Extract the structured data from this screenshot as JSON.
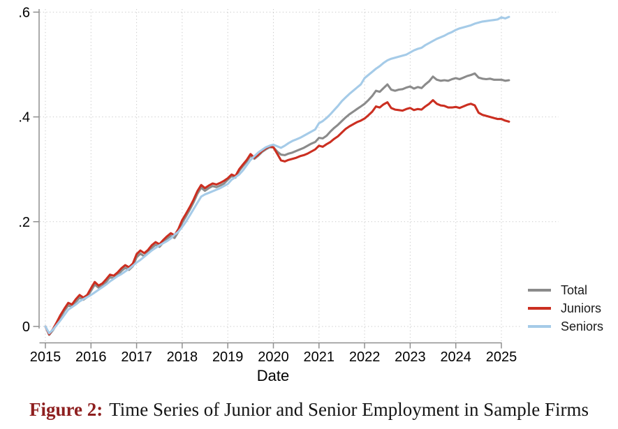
{
  "figure": {
    "caption_label": "Figure 2:",
    "caption_text": "Time Series of Junior and Senior Employment in Sample Firms",
    "caption_label_color": "#8e1f1f",
    "background_color": "#ffffff"
  },
  "chart_data": {
    "type": "line",
    "title": "",
    "xlabel": "Date",
    "ylabel": "",
    "grid": "dotted horizontal and vertical gridlines",
    "legend_position": "right",
    "axis_color": "#8f8f8f",
    "x_ticks": [
      2015,
      2016,
      2017,
      2018,
      2019,
      2020,
      2021,
      2022,
      2023,
      2024,
      2025
    ],
    "x_tick_labels": [
      "2015",
      "2016",
      "2017",
      "2018",
      "2019",
      "2020",
      "2021",
      "2022",
      "2023",
      "2024",
      "2025"
    ],
    "y_ticks": [
      0,
      0.2,
      0.4,
      0.6
    ],
    "y_tick_labels": [
      "0",
      ".2",
      ".4",
      ".6"
    ],
    "xlim": [
      2014.85,
      2026.2
    ],
    "ylim": [
      -0.02,
      0.61
    ],
    "x_frequency": "monthly",
    "x": [
      2015.0,
      2015.083,
      2015.167,
      2015.25,
      2015.333,
      2015.417,
      2015.5,
      2015.583,
      2015.667,
      2015.75,
      2015.833,
      2015.917,
      2016.0,
      2016.083,
      2016.167,
      2016.25,
      2016.333,
      2016.417,
      2016.5,
      2016.583,
      2016.667,
      2016.75,
      2016.833,
      2016.917,
      2017.0,
      2017.083,
      2017.167,
      2017.25,
      2017.333,
      2017.417,
      2017.5,
      2017.583,
      2017.667,
      2017.75,
      2017.833,
      2017.917,
      2018.0,
      2018.083,
      2018.167,
      2018.25,
      2018.333,
      2018.417,
      2018.5,
      2018.583,
      2018.667,
      2018.75,
      2018.833,
      2018.917,
      2019.0,
      2019.083,
      2019.167,
      2019.25,
      2019.333,
      2019.417,
      2019.5,
      2019.583,
      2019.667,
      2019.75,
      2019.833,
      2019.917,
      2020.0,
      2020.083,
      2020.167,
      2020.25,
      2020.333,
      2020.417,
      2020.5,
      2020.583,
      2020.667,
      2020.75,
      2020.833,
      2020.917,
      2021.0,
      2021.083,
      2021.167,
      2021.25,
      2021.333,
      2021.417,
      2021.5,
      2021.583,
      2021.667,
      2021.75,
      2021.833,
      2021.917,
      2022.0,
      2022.083,
      2022.167,
      2022.25,
      2022.333,
      2022.417,
      2022.5,
      2022.583,
      2022.667,
      2022.75,
      2022.833,
      2022.917,
      2023.0,
      2023.083,
      2023.167,
      2023.25,
      2023.333,
      2023.417,
      2023.5,
      2023.583,
      2023.667,
      2023.75,
      2023.833,
      2023.917,
      2024.0,
      2024.083,
      2024.167,
      2024.25,
      2024.333,
      2024.417,
      2024.5,
      2024.583,
      2024.667,
      2024.75,
      2024.833,
      2024.917,
      2025.0,
      2025.083,
      2025.167
    ],
    "series": [
      {
        "name": "Total",
        "color": "#8b8b8b",
        "values": [
          0.0,
          -0.016,
          -0.007,
          0.005,
          0.018,
          0.03,
          0.04,
          0.038,
          0.047,
          0.055,
          0.051,
          0.056,
          0.068,
          0.08,
          0.074,
          0.077,
          0.085,
          0.094,
          0.092,
          0.098,
          0.106,
          0.112,
          0.108,
          0.115,
          0.132,
          0.139,
          0.134,
          0.141,
          0.15,
          0.156,
          0.152,
          0.16,
          0.167,
          0.173,
          0.169,
          0.181,
          0.198,
          0.21,
          0.223,
          0.237,
          0.253,
          0.265,
          0.259,
          0.264,
          0.268,
          0.266,
          0.269,
          0.273,
          0.28,
          0.287,
          0.284,
          0.297,
          0.306,
          0.315,
          0.326,
          0.32,
          0.326,
          0.333,
          0.338,
          0.342,
          0.342,
          0.334,
          0.328,
          0.327,
          0.33,
          0.332,
          0.335,
          0.338,
          0.341,
          0.345,
          0.349,
          0.352,
          0.36,
          0.359,
          0.364,
          0.372,
          0.379,
          0.385,
          0.392,
          0.399,
          0.405,
          0.41,
          0.415,
          0.42,
          0.425,
          0.432,
          0.44,
          0.45,
          0.448,
          0.455,
          0.462,
          0.452,
          0.45,
          0.452,
          0.453,
          0.456,
          0.458,
          0.454,
          0.457,
          0.455,
          0.462,
          0.468,
          0.477,
          0.471,
          0.469,
          0.47,
          0.469,
          0.472,
          0.474,
          0.472,
          0.475,
          0.478,
          0.48,
          0.483,
          0.475,
          0.473,
          0.472,
          0.473,
          0.471,
          0.471,
          0.471,
          0.469,
          0.47
        ]
      },
      {
        "name": "Juniors",
        "color": "#cb2f21",
        "values": [
          0.0,
          -0.015,
          -0.005,
          0.008,
          0.022,
          0.034,
          0.045,
          0.042,
          0.052,
          0.06,
          0.055,
          0.06,
          0.073,
          0.085,
          0.078,
          0.082,
          0.09,
          0.099,
          0.097,
          0.103,
          0.111,
          0.117,
          0.113,
          0.12,
          0.138,
          0.145,
          0.14,
          0.146,
          0.155,
          0.161,
          0.157,
          0.165,
          0.172,
          0.178,
          0.174,
          0.186,
          0.203,
          0.215,
          0.228,
          0.242,
          0.258,
          0.27,
          0.264,
          0.269,
          0.273,
          0.271,
          0.274,
          0.278,
          0.283,
          0.29,
          0.287,
          0.3,
          0.309,
          0.318,
          0.329,
          0.322,
          0.328,
          0.335,
          0.34,
          0.344,
          0.342,
          0.33,
          0.317,
          0.315,
          0.318,
          0.32,
          0.322,
          0.325,
          0.327,
          0.33,
          0.334,
          0.338,
          0.345,
          0.343,
          0.348,
          0.352,
          0.358,
          0.363,
          0.37,
          0.377,
          0.382,
          0.386,
          0.39,
          0.393,
          0.397,
          0.403,
          0.41,
          0.42,
          0.418,
          0.424,
          0.428,
          0.417,
          0.414,
          0.413,
          0.412,
          0.415,
          0.417,
          0.413,
          0.415,
          0.414,
          0.42,
          0.425,
          0.432,
          0.425,
          0.422,
          0.421,
          0.418,
          0.418,
          0.419,
          0.417,
          0.42,
          0.423,
          0.425,
          0.422,
          0.408,
          0.404,
          0.402,
          0.4,
          0.398,
          0.396,
          0.396,
          0.393,
          0.391
        ]
      },
      {
        "name": "Seniors",
        "color": "#a5cbe8",
        "values": [
          0.0,
          -0.013,
          -0.006,
          0.003,
          0.012,
          0.022,
          0.032,
          0.037,
          0.042,
          0.048,
          0.052,
          0.056,
          0.06,
          0.065,
          0.07,
          0.075,
          0.08,
          0.086,
          0.091,
          0.096,
          0.1,
          0.105,
          0.11,
          0.116,
          0.122,
          0.127,
          0.133,
          0.139,
          0.145,
          0.15,
          0.155,
          0.159,
          0.163,
          0.168,
          0.175,
          0.181,
          0.19,
          0.2,
          0.212,
          0.224,
          0.236,
          0.248,
          0.252,
          0.255,
          0.258,
          0.261,
          0.264,
          0.268,
          0.272,
          0.28,
          0.285,
          0.29,
          0.298,
          0.308,
          0.318,
          0.325,
          0.332,
          0.337,
          0.342,
          0.345,
          0.347,
          0.344,
          0.341,
          0.345,
          0.35,
          0.354,
          0.357,
          0.36,
          0.364,
          0.368,
          0.372,
          0.376,
          0.388,
          0.392,
          0.398,
          0.405,
          0.413,
          0.421,
          0.43,
          0.437,
          0.444,
          0.45,
          0.456,
          0.462,
          0.474,
          0.48,
          0.486,
          0.492,
          0.497,
          0.503,
          0.508,
          0.511,
          0.513,
          0.515,
          0.517,
          0.519,
          0.523,
          0.527,
          0.53,
          0.532,
          0.537,
          0.541,
          0.545,
          0.549,
          0.552,
          0.555,
          0.559,
          0.562,
          0.566,
          0.569,
          0.571,
          0.573,
          0.575,
          0.578,
          0.58,
          0.582,
          0.583,
          0.584,
          0.585,
          0.586,
          0.59,
          0.588,
          0.591
        ]
      }
    ]
  }
}
